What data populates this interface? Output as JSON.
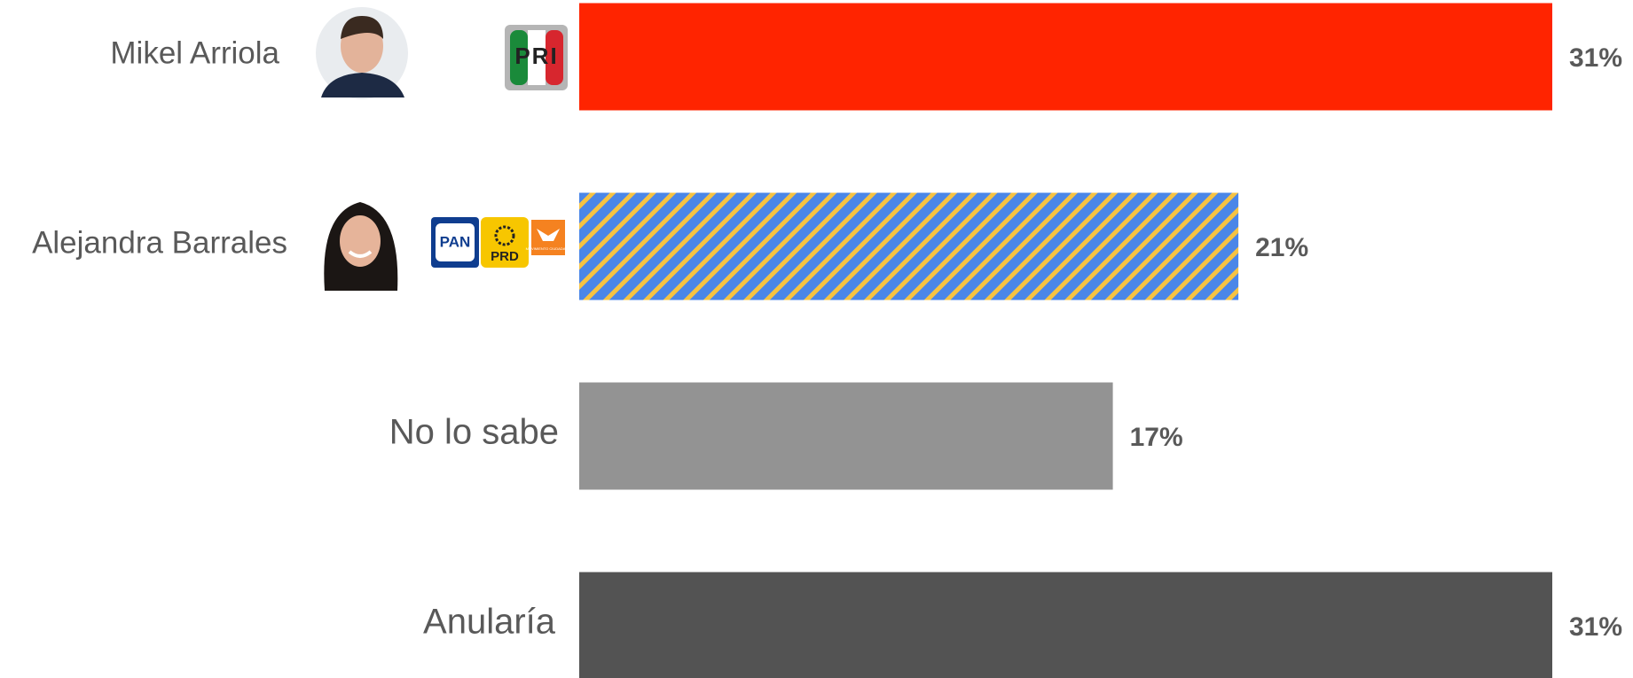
{
  "chart_data": {
    "type": "barh",
    "categories": [
      "Mikel Arriola",
      "Alejandra Barrales",
      "No lo sabe",
      "Anularía"
    ],
    "values": [
      31,
      21,
      17,
      31
    ],
    "value_labels": [
      "31%",
      "21%",
      "17%",
      "31%"
    ],
    "colors": [
      "#ff2400",
      [
        "#4a86e8",
        "#f6c342"
      ],
      "#939393",
      "#535353"
    ]
  },
  "logos": [
    "PRI",
    "PAN",
    "PRD",
    "MOVIMIENTO CIUDADANO"
  ]
}
